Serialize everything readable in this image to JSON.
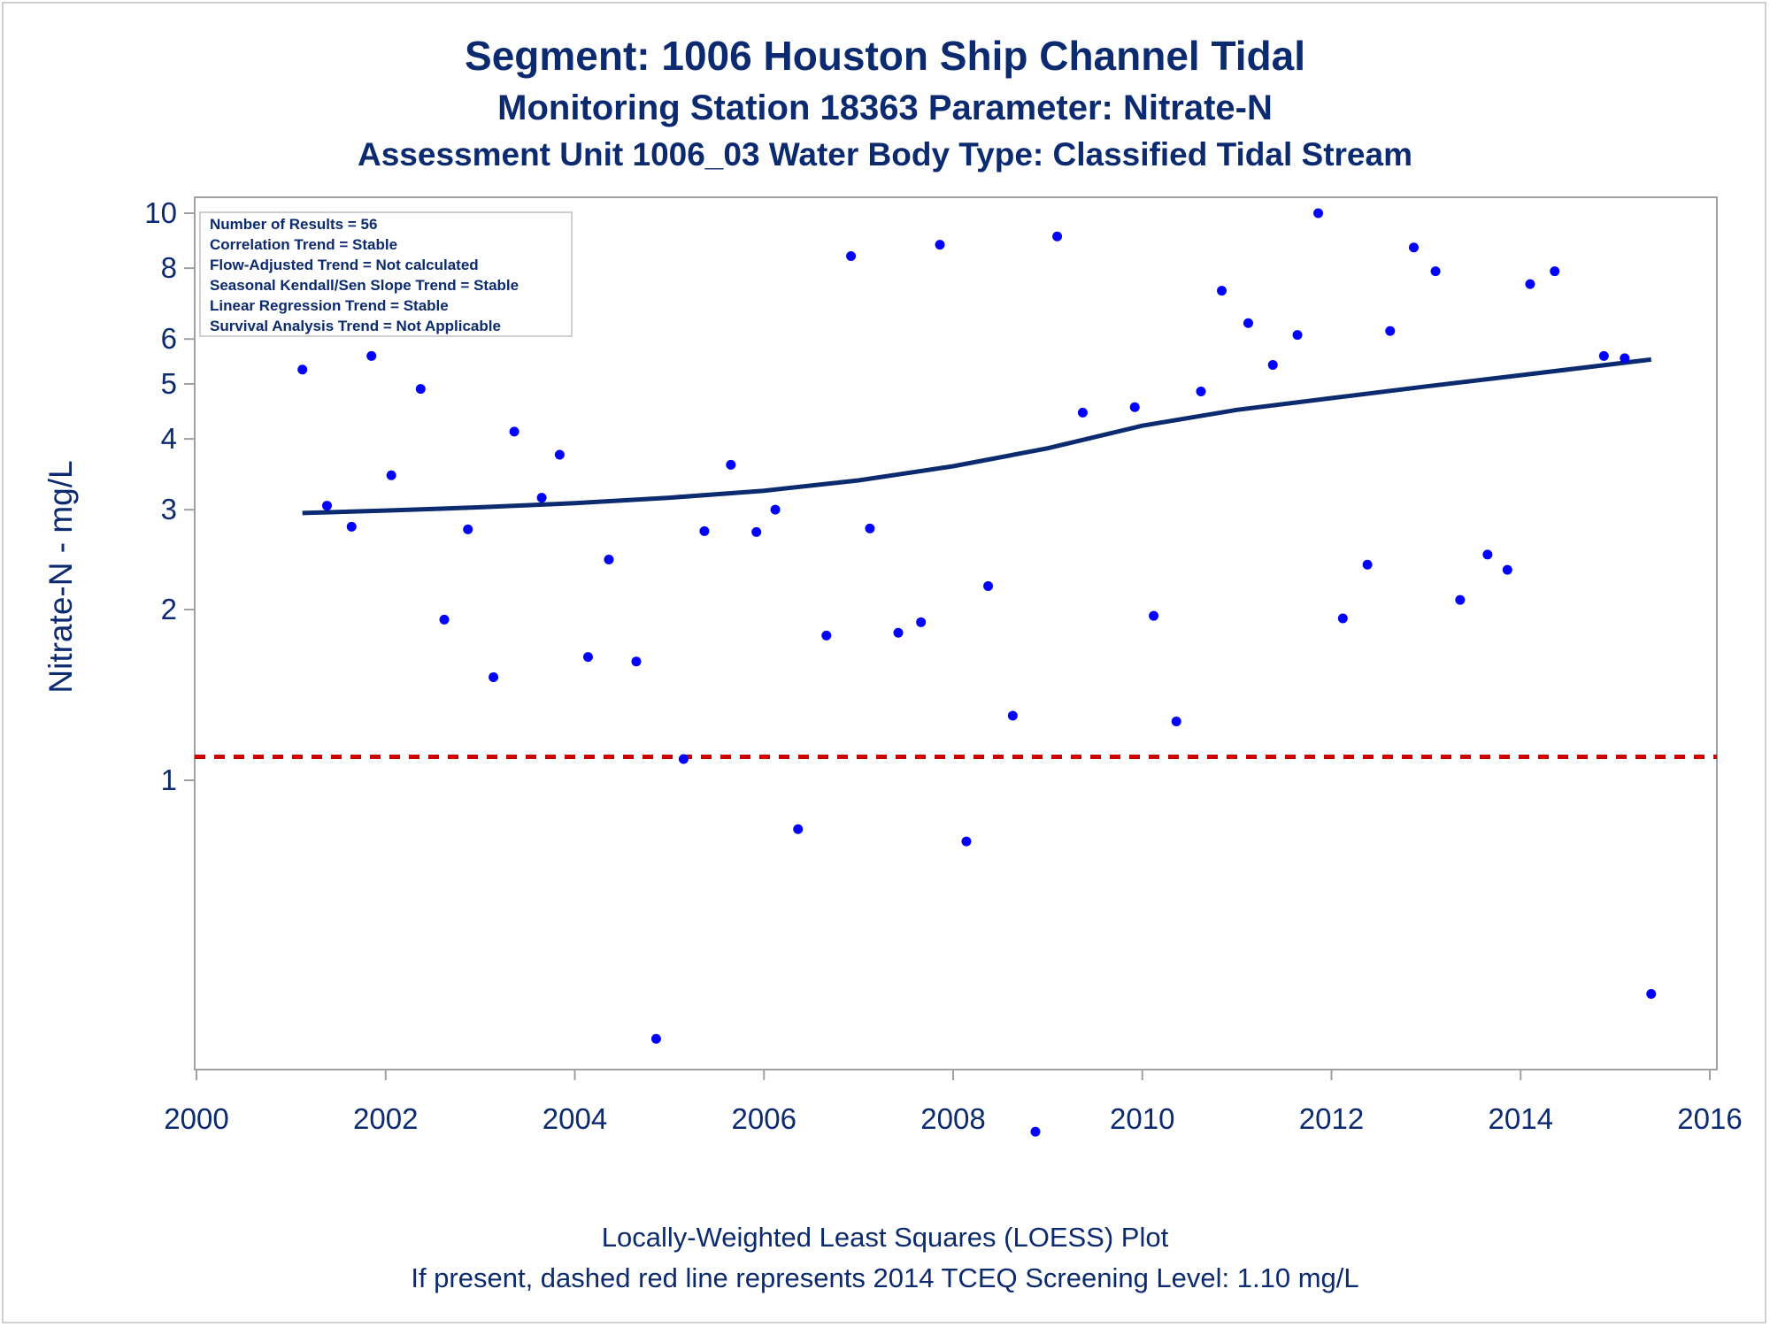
{
  "titles": {
    "line1": "Segment: 1006  Houston Ship Channel Tidal",
    "line2": "Monitoring Station 18363 Parameter: Nitrate-N",
    "line3": "Assessment Unit 1006_03   Water Body Type: Classified Tidal Stream"
  },
  "footnotes": {
    "line1": "Locally-Weighted Least Squares (LOESS) Plot",
    "line2": "If present, dashed red line represents 2014 TCEQ Screening Level: 1.10 mg/L"
  },
  "stats_box": [
    "Number of Results = 56",
    "Correlation Trend = Stable",
    "Flow-Adjusted Trend = Not calculated",
    "Seasonal Kendall/Sen Slope Trend = Stable",
    "Linear Regression Trend = Stable",
    "Survival Analysis Trend = Not Applicable"
  ],
  "colors": {
    "text": "#0b2a6f",
    "points": "#0000ff",
    "loess_line": "#0b2a6f",
    "screening_line": "#cc0000",
    "axis": "#a0a0a0"
  },
  "chart_data": {
    "type": "scatter",
    "title": "Segment: 1006  Houston Ship Channel Tidal",
    "xlabel": "",
    "ylabel": "Nitrate-N - mg/L",
    "xlim": [
      2000,
      2016
    ],
    "ylim": [
      0.2,
      10.5
    ],
    "yscale": "log",
    "xticks": [
      "2000",
      "2002",
      "2004",
      "2006",
      "2008",
      "2010",
      "2012",
      "2014",
      "2016"
    ],
    "yticks": [
      {
        "value": 1,
        "label": "1"
      },
      {
        "value": 2,
        "label": "2"
      },
      {
        "value": 3,
        "label": "3"
      },
      {
        "value": 4,
        "label": "4"
      },
      {
        "value": 5,
        "label": "5"
      },
      {
        "value": 6,
        "label": "6"
      },
      {
        "value": 8,
        "label": "8"
      },
      {
        "value": 10,
        "label": "10"
      }
    ],
    "screening_level": 1.1,
    "points": [
      {
        "x": 2001.12,
        "y": 5.3
      },
      {
        "x": 2001.38,
        "y": 3.05
      },
      {
        "x": 2001.64,
        "y": 2.8
      },
      {
        "x": 2001.85,
        "y": 5.6
      },
      {
        "x": 2002.06,
        "y": 3.45
      },
      {
        "x": 2002.37,
        "y": 4.9
      },
      {
        "x": 2002.62,
        "y": 1.92
      },
      {
        "x": 2002.87,
        "y": 2.77
      },
      {
        "x": 2003.14,
        "y": 1.52
      },
      {
        "x": 2003.36,
        "y": 4.12
      },
      {
        "x": 2003.65,
        "y": 3.15
      },
      {
        "x": 2003.84,
        "y": 3.75
      },
      {
        "x": 2004.14,
        "y": 1.65
      },
      {
        "x": 2004.36,
        "y": 2.45
      },
      {
        "x": 2004.65,
        "y": 1.62
      },
      {
        "x": 2004.86,
        "y": 0.35
      },
      {
        "x": 2005.15,
        "y": 1.09
      },
      {
        "x": 2005.37,
        "y": 2.75
      },
      {
        "x": 2005.65,
        "y": 3.6
      },
      {
        "x": 2005.92,
        "y": 2.74
      },
      {
        "x": 2006.12,
        "y": 3.0
      },
      {
        "x": 2006.36,
        "y": 0.82
      },
      {
        "x": 2006.66,
        "y": 1.8
      },
      {
        "x": 2006.92,
        "y": 8.4
      },
      {
        "x": 2007.12,
        "y": 2.78
      },
      {
        "x": 2007.42,
        "y": 1.82
      },
      {
        "x": 2007.66,
        "y": 1.9
      },
      {
        "x": 2007.86,
        "y": 8.8
      },
      {
        "x": 2008.14,
        "y": 0.78
      },
      {
        "x": 2008.37,
        "y": 2.2
      },
      {
        "x": 2008.63,
        "y": 1.3
      },
      {
        "x": 2008.87,
        "y": 0.24
      },
      {
        "x": 2009.1,
        "y": 9.1
      },
      {
        "x": 2009.37,
        "y": 4.45
      },
      {
        "x": 2009.92,
        "y": 4.55
      },
      {
        "x": 2010.12,
        "y": 1.95
      },
      {
        "x": 2010.36,
        "y": 1.27
      },
      {
        "x": 2010.62,
        "y": 4.85
      },
      {
        "x": 2010.84,
        "y": 7.3
      },
      {
        "x": 2011.12,
        "y": 6.4
      },
      {
        "x": 2011.38,
        "y": 5.4
      },
      {
        "x": 2011.64,
        "y": 6.1
      },
      {
        "x": 2011.86,
        "y": 10.0
      },
      {
        "x": 2012.12,
        "y": 1.93
      },
      {
        "x": 2012.38,
        "y": 2.4
      },
      {
        "x": 2012.62,
        "y": 6.2
      },
      {
        "x": 2012.87,
        "y": 8.7
      },
      {
        "x": 2013.1,
        "y": 7.9
      },
      {
        "x": 2013.36,
        "y": 2.08
      },
      {
        "x": 2013.65,
        "y": 2.5
      },
      {
        "x": 2013.86,
        "y": 2.35
      },
      {
        "x": 2014.1,
        "y": 7.5
      },
      {
        "x": 2014.36,
        "y": 7.9
      },
      {
        "x": 2014.88,
        "y": 5.6
      },
      {
        "x": 2015.1,
        "y": 5.55
      },
      {
        "x": 2015.38,
        "y": 0.42
      }
    ],
    "loess": [
      {
        "x": 2001.12,
        "y": 2.96
      },
      {
        "x": 2002.0,
        "y": 2.99
      },
      {
        "x": 2003.0,
        "y": 3.03
      },
      {
        "x": 2004.0,
        "y": 3.08
      },
      {
        "x": 2005.0,
        "y": 3.15
      },
      {
        "x": 2006.0,
        "y": 3.24
      },
      {
        "x": 2007.0,
        "y": 3.38
      },
      {
        "x": 2008.0,
        "y": 3.58
      },
      {
        "x": 2009.0,
        "y": 3.85
      },
      {
        "x": 2010.0,
        "y": 4.22
      },
      {
        "x": 2011.0,
        "y": 4.5
      },
      {
        "x": 2012.0,
        "y": 4.72
      },
      {
        "x": 2013.0,
        "y": 4.95
      },
      {
        "x": 2014.0,
        "y": 5.18
      },
      {
        "x": 2015.38,
        "y": 5.52
      }
    ]
  }
}
